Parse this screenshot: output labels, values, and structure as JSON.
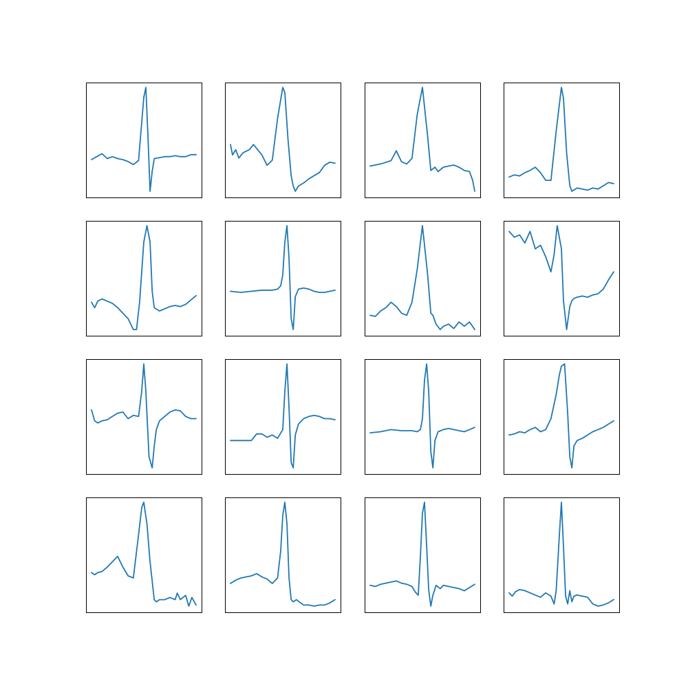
{
  "style": {
    "line_color": "#1f77b4",
    "frame_color": "#000000",
    "background": "#ffffff"
  },
  "chart_data": [
    {
      "type": "line",
      "grid": false,
      "x": [
        0,
        0.05,
        0.1,
        0.15,
        0.2,
        0.25,
        0.3,
        0.35,
        0.4,
        0.45,
        0.5,
        0.52,
        0.54,
        0.56,
        0.58,
        0.6,
        0.65,
        0.7,
        0.75,
        0.8,
        0.85,
        0.9,
        0.95,
        1
      ],
      "y": [
        0.27,
        0.3,
        0.33,
        0.28,
        0.3,
        0.28,
        0.27,
        0.25,
        0.22,
        0.26,
        0.9,
        1.0,
        0.5,
        -0.05,
        0.15,
        0.28,
        0.29,
        0.3,
        0.3,
        0.31,
        0.3,
        0.3,
        0.32,
        0.32
      ]
    },
    {
      "type": "line",
      "grid": false,
      "x": [
        0,
        0.02,
        0.05,
        0.08,
        0.12,
        0.18,
        0.22,
        0.26,
        0.3,
        0.35,
        0.4,
        0.45,
        0.5,
        0.52,
        0.55,
        0.58,
        0.6,
        0.62,
        0.65,
        0.7,
        0.75,
        0.8,
        0.85,
        0.9,
        0.95,
        1
      ],
      "y": [
        0.45,
        0.35,
        0.4,
        0.32,
        0.37,
        0.4,
        0.45,
        0.4,
        0.35,
        0.25,
        0.3,
        0.7,
        1.0,
        0.95,
        0.5,
        0.15,
        0.05,
        0.0,
        0.05,
        0.08,
        0.12,
        0.15,
        0.18,
        0.25,
        0.28,
        0.27
      ]
    },
    {
      "type": "line",
      "grid": false,
      "x": [
        0,
        0.1,
        0.2,
        0.25,
        0.3,
        0.35,
        0.4,
        0.45,
        0.5,
        0.55,
        0.58,
        0.62,
        0.65,
        0.7,
        0.75,
        0.8,
        0.85,
        0.9,
        0.95,
        0.98,
        1
      ],
      "y": [
        0.28,
        0.3,
        0.33,
        0.42,
        0.32,
        0.3,
        0.35,
        0.75,
        1.0,
        0.55,
        0.24,
        0.27,
        0.23,
        0.27,
        0.28,
        0.29,
        0.27,
        0.24,
        0.23,
        0.15,
        0.05
      ]
    },
    {
      "type": "line",
      "grid": false,
      "x": [
        0,
        0.05,
        0.1,
        0.15,
        0.2,
        0.25,
        0.3,
        0.35,
        0.4,
        0.45,
        0.5,
        0.52,
        0.55,
        0.58,
        0.6,
        0.65,
        0.7,
        0.75,
        0.8,
        0.85,
        0.9,
        0.95,
        1
      ],
      "y": [
        0.18,
        0.2,
        0.19,
        0.22,
        0.24,
        0.27,
        0.22,
        0.15,
        0.15,
        0.6,
        1.0,
        0.9,
        0.4,
        0.1,
        0.05,
        0.08,
        0.07,
        0.06,
        0.08,
        0.07,
        0.1,
        0.13,
        0.12
      ]
    },
    {
      "type": "line",
      "grid": false,
      "x": [
        0,
        0.03,
        0.06,
        0.1,
        0.15,
        0.2,
        0.25,
        0.3,
        0.35,
        0.4,
        0.43,
        0.46,
        0.5,
        0.53,
        0.56,
        0.58,
        0.6,
        0.65,
        0.7,
        0.75,
        0.8,
        0.85,
        0.9,
        0.95,
        1
      ],
      "y": [
        0.3,
        0.25,
        0.31,
        0.33,
        0.31,
        0.29,
        0.25,
        0.2,
        0.15,
        0.05,
        0.05,
        0.3,
        0.85,
        1.0,
        0.85,
        0.4,
        0.25,
        0.22,
        0.24,
        0.26,
        0.27,
        0.26,
        0.28,
        0.32,
        0.36
      ]
    },
    {
      "type": "line",
      "grid": false,
      "x": [
        0,
        0.1,
        0.2,
        0.3,
        0.4,
        0.45,
        0.48,
        0.5,
        0.52,
        0.54,
        0.56,
        0.58,
        0.6,
        0.62,
        0.65,
        0.7,
        0.75,
        0.8,
        0.85,
        0.9,
        0.95,
        1
      ],
      "y": [
        0.4,
        0.39,
        0.4,
        0.41,
        0.41,
        0.42,
        0.45,
        0.55,
        0.85,
        1.0,
        0.7,
        0.15,
        0.05,
        0.35,
        0.42,
        0.43,
        0.42,
        0.4,
        0.39,
        0.39,
        0.4,
        0.41
      ]
    },
    {
      "type": "line",
      "grid": false,
      "x": [
        0,
        0.05,
        0.1,
        0.15,
        0.2,
        0.25,
        0.3,
        0.35,
        0.4,
        0.45,
        0.5,
        0.55,
        0.58,
        0.6,
        0.63,
        0.67,
        0.7,
        0.75,
        0.8,
        0.85,
        0.9,
        0.95,
        1
      ],
      "y": [
        0.18,
        0.17,
        0.22,
        0.25,
        0.3,
        0.26,
        0.2,
        0.18,
        0.3,
        0.6,
        1.0,
        0.55,
        0.2,
        0.18,
        0.1,
        0.05,
        0.08,
        0.1,
        0.06,
        0.12,
        0.08,
        0.12,
        0.05
      ]
    },
    {
      "type": "line",
      "grid": false,
      "x": [
        0,
        0.05,
        0.1,
        0.15,
        0.2,
        0.25,
        0.3,
        0.35,
        0.4,
        0.43,
        0.46,
        0.5,
        0.52,
        0.55,
        0.58,
        0.6,
        0.62,
        0.65,
        0.7,
        0.75,
        0.8,
        0.85,
        0.9,
        0.95,
        1
      ],
      "y": [
        0.9,
        0.85,
        0.87,
        0.8,
        0.9,
        0.75,
        0.78,
        0.68,
        0.55,
        0.7,
        0.95,
        0.75,
        0.3,
        0.05,
        0.25,
        0.3,
        0.32,
        0.33,
        0.34,
        0.33,
        0.35,
        0.36,
        0.4,
        0.48,
        0.55
      ]
    },
    {
      "type": "line",
      "grid": false,
      "x": [
        0,
        0.03,
        0.06,
        0.1,
        0.15,
        0.2,
        0.25,
        0.3,
        0.35,
        0.4,
        0.45,
        0.48,
        0.5,
        0.52,
        0.55,
        0.58,
        0.6,
        0.62,
        0.65,
        0.7,
        0.75,
        0.8,
        0.85,
        0.9,
        0.95,
        1
      ],
      "y": [
        0.58,
        0.48,
        0.46,
        0.48,
        0.49,
        0.52,
        0.55,
        0.56,
        0.5,
        0.53,
        0.52,
        0.75,
        1.0,
        0.75,
        0.15,
        0.05,
        0.25,
        0.4,
        0.48,
        0.52,
        0.56,
        0.58,
        0.57,
        0.52,
        0.5,
        0.5
      ]
    },
    {
      "type": "line",
      "grid": false,
      "x": [
        0,
        0.1,
        0.2,
        0.25,
        0.3,
        0.35,
        0.4,
        0.45,
        0.5,
        0.52,
        0.54,
        0.56,
        0.58,
        0.6,
        0.62,
        0.65,
        0.7,
        0.75,
        0.8,
        0.85,
        0.9,
        0.95,
        1
      ],
      "y": [
        0.3,
        0.3,
        0.3,
        0.36,
        0.36,
        0.33,
        0.35,
        0.32,
        0.4,
        0.75,
        1.0,
        0.6,
        0.1,
        0.05,
        0.35,
        0.45,
        0.5,
        0.52,
        0.53,
        0.52,
        0.5,
        0.5,
        0.49
      ]
    },
    {
      "type": "line",
      "grid": false,
      "x": [
        0,
        0.1,
        0.2,
        0.3,
        0.4,
        0.45,
        0.48,
        0.5,
        0.52,
        0.54,
        0.56,
        0.58,
        0.6,
        0.62,
        0.65,
        0.7,
        0.75,
        0.8,
        0.85,
        0.9,
        0.95,
        1
      ],
      "y": [
        0.37,
        0.38,
        0.4,
        0.39,
        0.39,
        0.38,
        0.4,
        0.5,
        0.85,
        1.0,
        0.75,
        0.2,
        0.05,
        0.3,
        0.38,
        0.4,
        0.41,
        0.4,
        0.39,
        0.38,
        0.4,
        0.42
      ]
    },
    {
      "type": "line",
      "grid": false,
      "x": [
        0,
        0.05,
        0.1,
        0.15,
        0.2,
        0.25,
        0.3,
        0.35,
        0.4,
        0.45,
        0.48,
        0.5,
        0.53,
        0.56,
        0.58,
        0.6,
        0.62,
        0.65,
        0.7,
        0.75,
        0.8,
        0.85,
        0.9,
        0.95,
        1
      ],
      "y": [
        0.35,
        0.36,
        0.38,
        0.37,
        0.4,
        0.42,
        0.38,
        0.4,
        0.5,
        0.72,
        0.9,
        0.98,
        1.0,
        0.55,
        0.15,
        0.05,
        0.25,
        0.3,
        0.32,
        0.35,
        0.38,
        0.4,
        0.42,
        0.45,
        0.48
      ]
    },
    {
      "type": "line",
      "grid": false,
      "x": [
        0,
        0.03,
        0.06,
        0.1,
        0.15,
        0.2,
        0.25,
        0.3,
        0.35,
        0.4,
        0.45,
        0.48,
        0.5,
        0.53,
        0.56,
        0.6,
        0.62,
        0.65,
        0.7,
        0.75,
        0.8,
        0.82,
        0.85,
        0.9,
        0.93,
        0.96,
        1
      ],
      "y": [
        0.35,
        0.33,
        0.35,
        0.36,
        0.4,
        0.45,
        0.5,
        0.4,
        0.32,
        0.3,
        0.7,
        0.95,
        1.0,
        0.8,
        0.45,
        0.1,
        0.08,
        0.1,
        0.1,
        0.12,
        0.1,
        0.16,
        0.1,
        0.14,
        0.04,
        0.12,
        0.05
      ]
    },
    {
      "type": "line",
      "grid": false,
      "x": [
        0,
        0.05,
        0.1,
        0.15,
        0.2,
        0.25,
        0.3,
        0.35,
        0.4,
        0.45,
        0.48,
        0.5,
        0.52,
        0.54,
        0.56,
        0.58,
        0.6,
        0.63,
        0.67,
        0.7,
        0.75,
        0.8,
        0.85,
        0.9,
        0.95,
        1
      ],
      "y": [
        0.25,
        0.28,
        0.3,
        0.31,
        0.32,
        0.34,
        0.31,
        0.29,
        0.25,
        0.3,
        0.55,
        0.88,
        1.0,
        0.8,
        0.3,
        0.1,
        0.08,
        0.1,
        0.07,
        0.05,
        0.05,
        0.04,
        0.05,
        0.05,
        0.07,
        0.1
      ]
    },
    {
      "type": "line",
      "grid": false,
      "x": [
        0,
        0.05,
        0.1,
        0.15,
        0.2,
        0.25,
        0.3,
        0.35,
        0.4,
        0.43,
        0.46,
        0.48,
        0.5,
        0.52,
        0.54,
        0.56,
        0.58,
        0.6,
        0.63,
        0.67,
        0.7,
        0.75,
        0.8,
        0.85,
        0.9,
        0.95,
        1
      ],
      "y": [
        0.24,
        0.23,
        0.25,
        0.26,
        0.27,
        0.28,
        0.26,
        0.25,
        0.23,
        0.18,
        0.15,
        0.5,
        0.9,
        1.0,
        0.6,
        0.2,
        0.05,
        0.15,
        0.24,
        0.21,
        0.24,
        0.23,
        0.22,
        0.21,
        0.19,
        0.22,
        0.25
      ]
    },
    {
      "type": "line",
      "grid": false,
      "x": [
        0,
        0.03,
        0.06,
        0.1,
        0.15,
        0.2,
        0.25,
        0.3,
        0.35,
        0.4,
        0.43,
        0.45,
        0.48,
        0.5,
        0.52,
        0.54,
        0.56,
        0.58,
        0.6,
        0.62,
        0.65,
        0.7,
        0.75,
        0.8,
        0.85,
        0.9,
        0.95,
        1
      ],
      "y": [
        0.18,
        0.15,
        0.19,
        0.21,
        0.2,
        0.18,
        0.16,
        0.14,
        0.18,
        0.15,
        0.08,
        0.2,
        0.7,
        1.0,
        0.6,
        0.15,
        0.08,
        0.2,
        0.1,
        0.15,
        0.16,
        0.15,
        0.14,
        0.08,
        0.06,
        0.07,
        0.09,
        0.12
      ]
    }
  ]
}
